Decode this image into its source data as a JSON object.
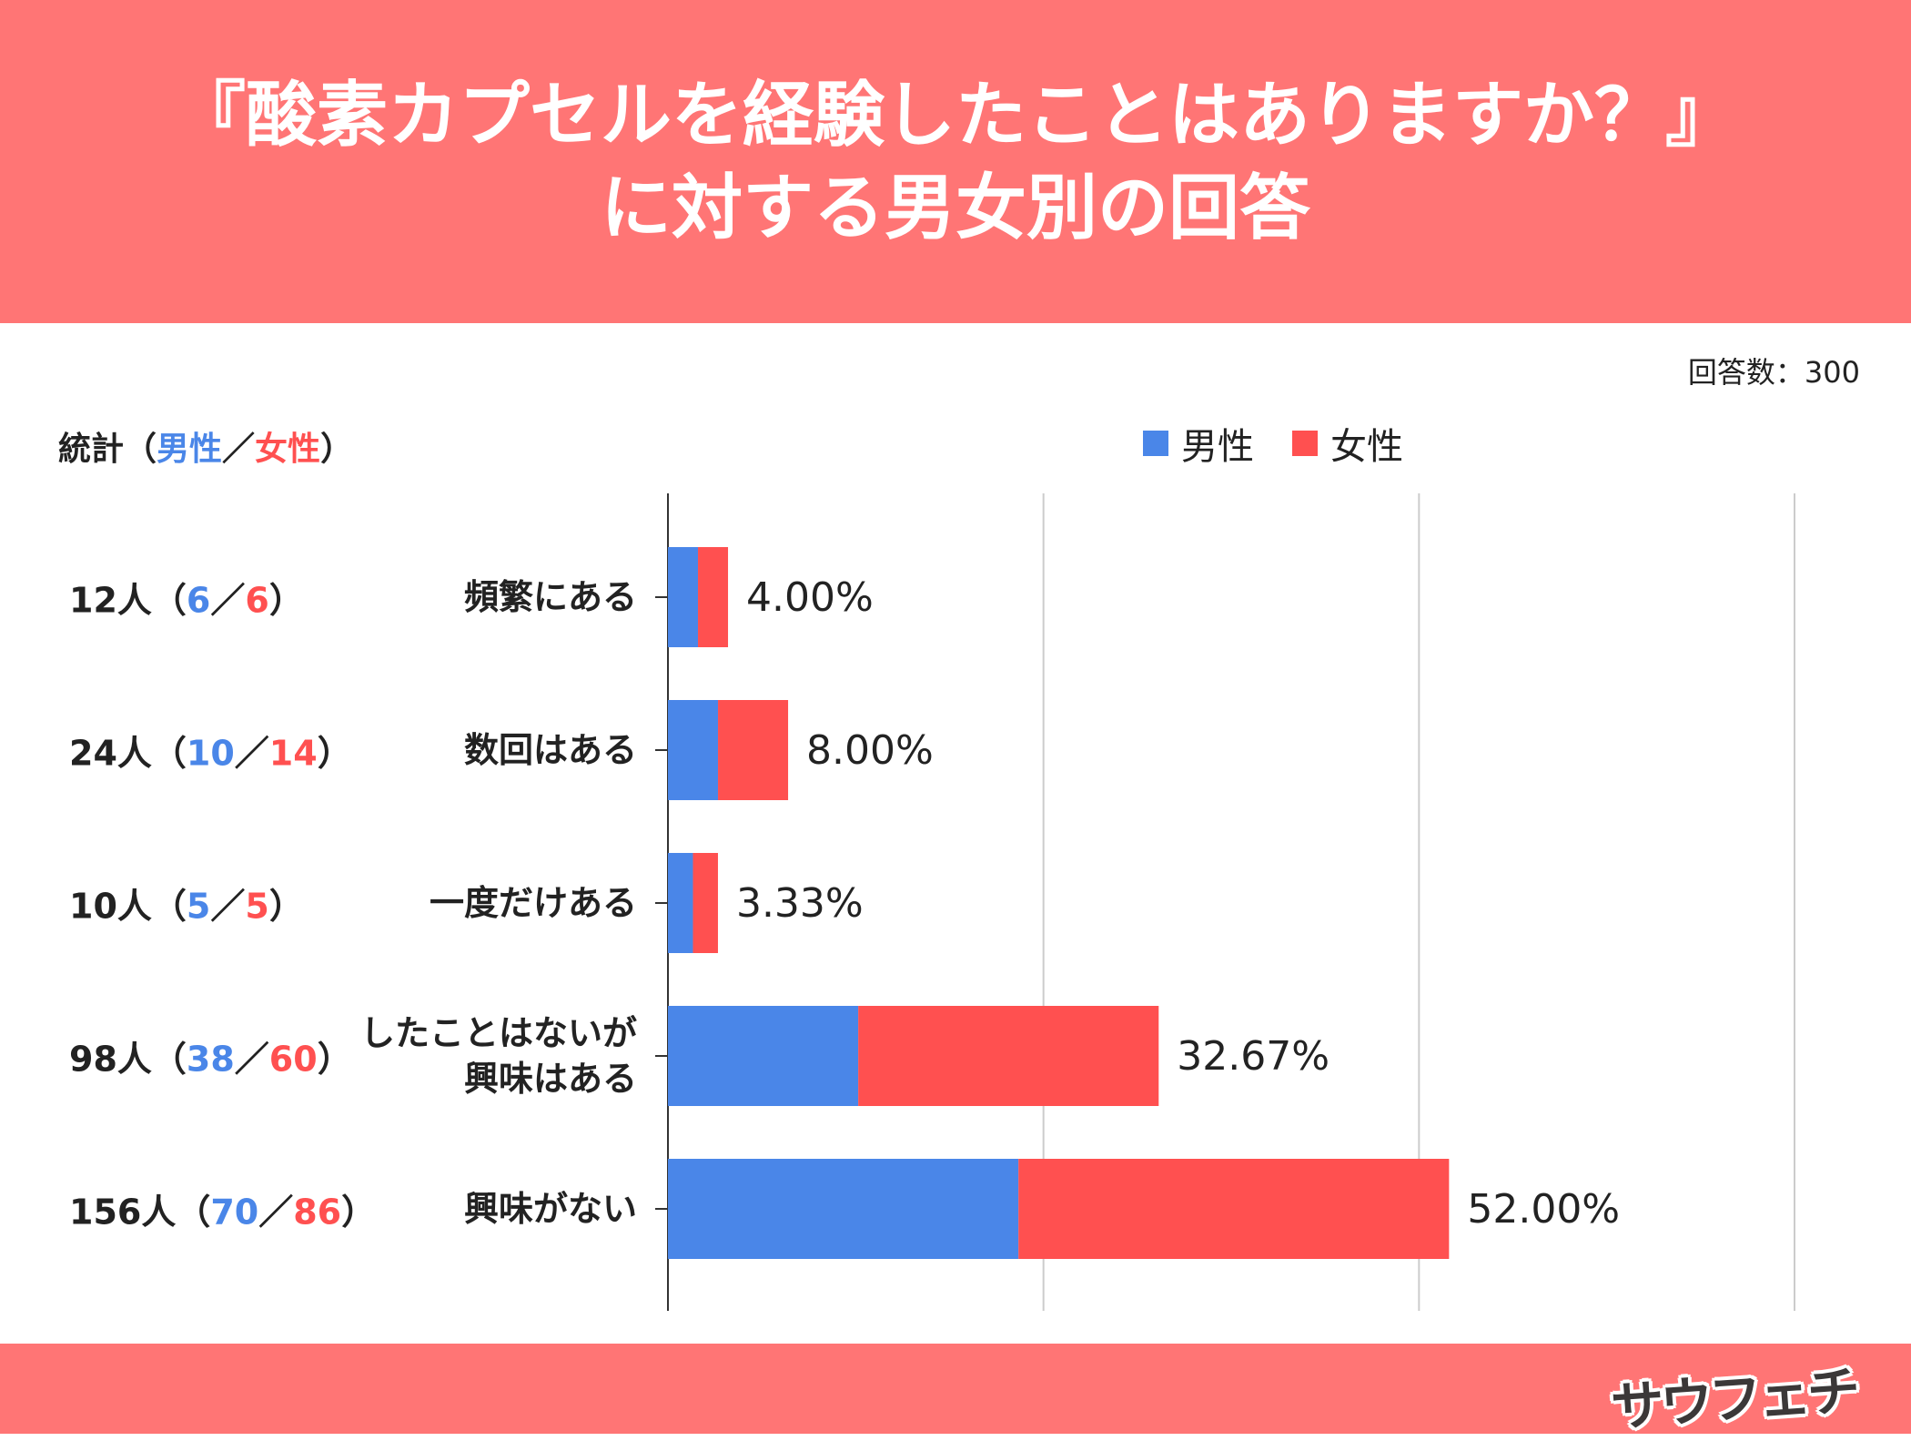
{
  "header": {
    "line1": "『酸素カプセルを経験したことはありますか？』",
    "line2": "に対する男女別の回答"
  },
  "respondents": "回答数：300",
  "stats_header": {
    "prefix": "統計（",
    "male": "男性",
    "sep": "／",
    "female": "女性",
    "suffix": "）"
  },
  "legend": {
    "male": "男性",
    "female": "女性"
  },
  "colors": {
    "male": "#4A86E8",
    "female": "#FF5050",
    "header": "#FF7575"
  },
  "logo": "サウフェチ",
  "chart_data": {
    "type": "bar",
    "orientation": "horizontal",
    "stacked": true,
    "categories": [
      "頻繁にある",
      "数回はある",
      "一度だけある",
      "したことはないが\n興味はある",
      "興味がない"
    ],
    "totals": [
      "12人",
      "24人",
      "10人",
      "98人",
      "156人"
    ],
    "male_counts": [
      "6",
      "10",
      "5",
      "38",
      "70"
    ],
    "female_counts": [
      "6",
      "14",
      "5",
      "60",
      "86"
    ],
    "percent_labels": [
      "4.00%",
      "8.00%",
      "3.33%",
      "32.67%",
      "52.00%"
    ],
    "values": [
      4.0,
      8.0,
      3.33,
      32.67,
      52.0
    ],
    "series": [
      {
        "name": "男性",
        "values": [
          2.0,
          3.33,
          1.67,
          12.67,
          23.33
        ]
      },
      {
        "name": "女性",
        "values": [
          2.0,
          4.67,
          1.67,
          20.0,
          28.67
        ]
      }
    ],
    "xlim": [
      0,
      75
    ],
    "gridlines": [
      25,
      50,
      75
    ],
    "grid": true,
    "legend_position": "top"
  }
}
